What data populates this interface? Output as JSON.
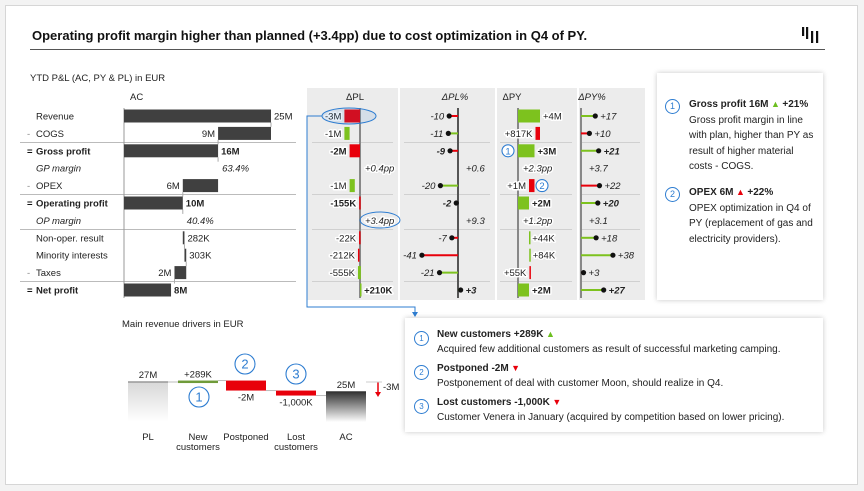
{
  "header": {
    "title": "Operating profit margin higher than planned (+3.4pp) due to cost optimization in Q4 of PY.",
    "logo_icon": "bar-chart-logo-icon"
  },
  "colors": {
    "good": "#7dc21e",
    "bad": "#e8000b",
    "ac": "#404040",
    "accent": "#2e7dd1",
    "panel": "#ececec"
  },
  "chart_data": [
    {
      "type": "table",
      "title": "YTD P&L (AC, PY & PL) in EUR",
      "columns": [
        "AC",
        "ΔPL",
        "ΔPL%",
        "ΔPY",
        "ΔPY%"
      ],
      "rows": [
        {
          "prefix": "",
          "label": "Revenue",
          "kind": "total",
          "bold": false,
          "ac": 25,
          "ac_label": "25M",
          "dpl": -3,
          "dpl_label": "-3M",
          "dplp": -10,
          "dplp_label": "-10",
          "dpy": 4,
          "dpy_label": "+4M",
          "dpyp": 17,
          "dpyp_label": "+17",
          "highlight_dpl": true
        },
        {
          "prefix": "-",
          "label": "COGS",
          "kind": "sub",
          "bold": false,
          "ac": 9,
          "ac_label": "9M",
          "dpl": -1,
          "dpl_label": "-1M",
          "dplp": -11,
          "dplp_label": "-11",
          "dpy": 0.817,
          "dpy_label": "+817K",
          "dpyp": 10,
          "dpyp_label": "+10"
        },
        {
          "prefix": "=",
          "label": "Gross profit",
          "kind": "total",
          "bold": true,
          "ac": 16,
          "ac_label": "16M",
          "dpl": -2,
          "dpl_label": "-2M",
          "dplp": -9,
          "dplp_label": "-9",
          "dpy": 3,
          "dpy_label": "+3M",
          "dpyp": 21,
          "dpyp_label": "+21",
          "marker_dpy": "1"
        },
        {
          "prefix": "",
          "label": "GP margin",
          "kind": "pct",
          "italic": true,
          "ac_label": "63.4%",
          "dpl_label": "+0.4pp",
          "dplp_label": "+0.6",
          "dpy_label": "+2.3pp",
          "dpyp_label": "+3.7"
        },
        {
          "prefix": "-",
          "label": "OPEX",
          "kind": "sub",
          "bold": false,
          "ac": 6,
          "ac_label": "6M",
          "dpl": -1,
          "dpl_label": "-1M",
          "dplp": -20,
          "dplp_label": "-20",
          "dpy": 1,
          "dpy_label": "+1M",
          "dpyp": 22,
          "dpyp_label": "+22",
          "marker_dpy": "2"
        },
        {
          "prefix": "=",
          "label": "Operating profit",
          "kind": "total",
          "bold": true,
          "ac": 10,
          "ac_label": "10M",
          "dpl": -0.155,
          "dpl_label": "-155K",
          "dplp": -2,
          "dplp_label": "-2",
          "dpy": 2,
          "dpy_label": "+2M",
          "dpyp": 20,
          "dpyp_label": "+20"
        },
        {
          "prefix": "",
          "label": "OP margin",
          "kind": "pct",
          "italic": true,
          "ac_label": "40.4%",
          "dpl_label": "+3.4pp",
          "dplp_label": "+9.3",
          "dpy_label": "+1.2pp",
          "dpyp_label": "+3.1",
          "highlight_dpl": true
        },
        {
          "prefix": "",
          "label": "Non-oper. result",
          "kind": "add",
          "bold": false,
          "ac": 0.282,
          "ac_label": "282K",
          "dpl": -0.022,
          "dpl_label": "-22K",
          "dplp": -7,
          "dplp_label": "-7",
          "dpy": 0.044,
          "dpy_label": "+44K",
          "dpyp": 18,
          "dpyp_label": "+18"
        },
        {
          "prefix": "",
          "label": "Minority interests",
          "kind": "add",
          "bold": false,
          "ac": 0.303,
          "ac_label": "303K",
          "dpl": -0.212,
          "dpl_label": "-212K",
          "dplp": -41,
          "dplp_label": "-41",
          "dpy": 0.084,
          "dpy_label": "+84K",
          "dpyp": 38,
          "dpyp_label": "+38"
        },
        {
          "prefix": "-",
          "label": "Taxes",
          "kind": "sub",
          "bold": false,
          "ac": 2,
          "ac_label": "2M",
          "dpl": -0.555,
          "dpl_label": "-555K",
          "dplp": -21,
          "dplp_label": "-21",
          "dpy": 0.055,
          "dpy_label": "+55K",
          "dpyp": 3,
          "dpyp_label": "+3"
        },
        {
          "prefix": "=",
          "label": "Net profit",
          "kind": "total",
          "bold": true,
          "ac": 8,
          "ac_label": "8M",
          "dpl": 0.21,
          "dpl_label": "+210K",
          "dplp": 3,
          "dplp_label": "+3",
          "dpy": 2,
          "dpy_label": "+2M",
          "dpyp": 27,
          "dpyp_label": "+27"
        }
      ]
    },
    {
      "type": "bar",
      "subtype": "waterfall",
      "title": "Main revenue drivers in EUR",
      "categories": [
        "PL",
        "New customers",
        "Postponed",
        "Lost customers",
        "AC"
      ],
      "category_lines": [
        [
          "PL"
        ],
        [
          "New",
          "customers"
        ],
        [
          "Postponed"
        ],
        [
          "Lost",
          "customers"
        ],
        [
          "AC"
        ]
      ],
      "values": [
        27,
        0.289,
        -2,
        -1,
        25
      ],
      "kinds": [
        "total",
        "delta",
        "delta",
        "delta",
        "total"
      ],
      "labels": [
        "27M",
        "+289K",
        "-2M",
        "-1,000K",
        "25M"
      ],
      "markers": [
        "",
        "1",
        "2",
        "3",
        ""
      ],
      "difference_label": "-3M"
    }
  ],
  "notes_right": [
    {
      "num": "1",
      "head": "Gross profit 16M",
      "trend": "up",
      "trend_color": "green",
      "change": "+21%",
      "text": "Gross profit margin in line with plan, higher than PY as result of higher material costs - COGS."
    },
    {
      "num": "2",
      "head": "OPEX 6M",
      "trend": "up",
      "trend_color": "red",
      "change": "+22%",
      "text": "OPEX optimization in Q4 of PY (replacement of gas and electricity providers)."
    }
  ],
  "notes_bottom": [
    {
      "num": "1",
      "head": "New customers +289K",
      "trend": "up",
      "trend_color": "green",
      "text": "Acquired few additional customers as result of successful marketing camping."
    },
    {
      "num": "2",
      "head": "Postponed -2M",
      "trend": "down",
      "trend_color": "red",
      "text": "Postponement of deal with customer Moon, should realize in Q4."
    },
    {
      "num": "3",
      "head": "Lost customers -1,000K",
      "trend": "down",
      "trend_color": "red",
      "text": "Customer Venera in January (acquired by competition based on lower pricing)."
    }
  ]
}
